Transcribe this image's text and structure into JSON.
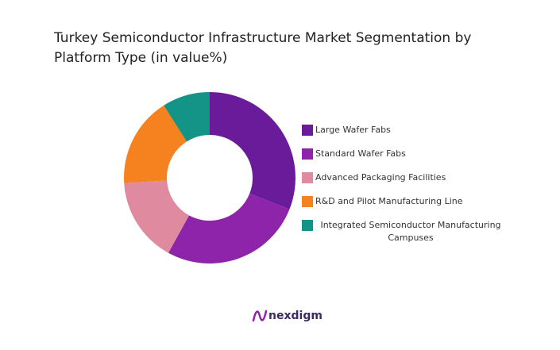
{
  "chart_data": {
    "type": "donut",
    "title": "Turkey Semiconductor Infrastructure Market Segmentation by Platform Type (in value%)",
    "categories": [
      "Large Wafer Fabs",
      "Standard Wafer Fabs",
      "Advanced Packaging Facilities",
      "R&D and Pilot Manufacturing Line",
      "Integrated Semiconductor Manufacturing Campuses"
    ],
    "values": [
      31,
      27,
      16,
      17,
      9
    ],
    "colors": [
      "#6a1b9a",
      "#8e24aa",
      "#e08aa0",
      "#f5821f",
      "#139487"
    ]
  },
  "logo": "nexdigm"
}
